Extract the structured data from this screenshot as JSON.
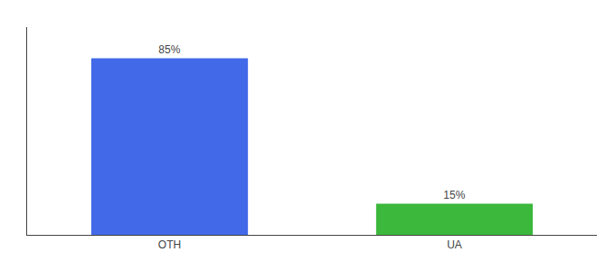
{
  "chart_data": {
    "type": "bar",
    "categories": [
      "OTH",
      "UA"
    ],
    "values": [
      85,
      15
    ],
    "value_labels": [
      "85%",
      "15%"
    ],
    "colors": [
      "#4169E8",
      "#3CB83C"
    ],
    "ylim": [
      0,
      100
    ],
    "yticks": [],
    "data_labels": true,
    "tick_labels": "x",
    "grid": false
  }
}
